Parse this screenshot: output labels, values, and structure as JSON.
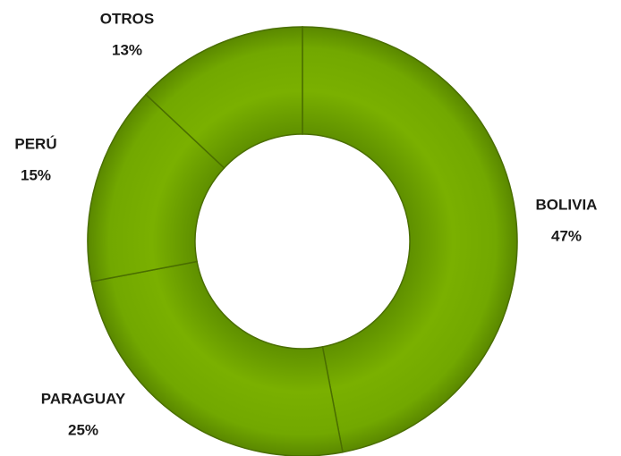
{
  "chart_data": {
    "type": "donut",
    "categories": [
      "BOLIVIA",
      "PARAGUAY",
      "PERÚ",
      "OTROS"
    ],
    "values": [
      47,
      25,
      15,
      13
    ],
    "value_labels": [
      "47%",
      "25%",
      "15%",
      "13%"
    ],
    "color": "#74a800"
  }
}
